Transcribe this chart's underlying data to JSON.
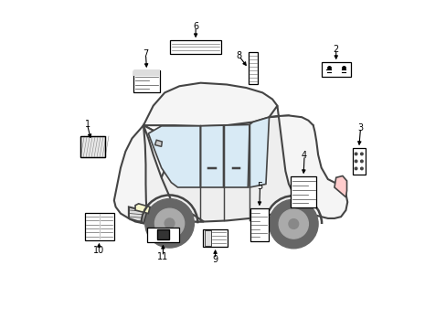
{
  "bg_color": "#ffffff",
  "fig_width": 4.89,
  "fig_height": 3.6,
  "dpi": 100,
  "line_color": "#555555",
  "label_color": "#000000",
  "car_outline": "#444444",
  "car_fill": "#f5f5f5",
  "car_lw": 1.5
}
